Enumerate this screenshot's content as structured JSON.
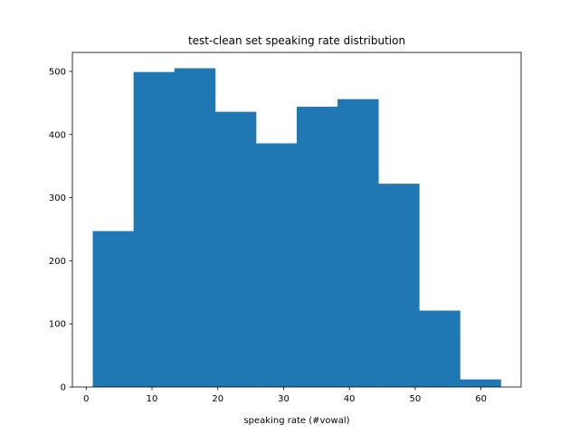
{
  "chart_data": {
    "type": "bar",
    "title": "test-clean set speaking rate distribution",
    "xlabel": "speaking rate (#vowal)",
    "ylabel": "",
    "bar_color": "#1f77b4",
    "bins": [
      {
        "x0": 1.0,
        "x1": 7.2,
        "value": 247
      },
      {
        "x0": 7.2,
        "x1": 13.4,
        "value": 499
      },
      {
        "x0": 13.4,
        "x1": 19.6,
        "value": 505
      },
      {
        "x0": 19.6,
        "x1": 25.8,
        "value": 436
      },
      {
        "x0": 25.8,
        "x1": 32.0,
        "value": 386
      },
      {
        "x0": 32.0,
        "x1": 38.2,
        "value": 444
      },
      {
        "x0": 38.2,
        "x1": 44.4,
        "value": 456
      },
      {
        "x0": 44.4,
        "x1": 50.6,
        "value": 322
      },
      {
        "x0": 50.6,
        "x1": 56.8,
        "value": 121
      },
      {
        "x0": 56.8,
        "x1": 63.0,
        "value": 12
      }
    ],
    "xlim": [
      -2.1,
      66.1
    ],
    "ylim": [
      0,
      530
    ],
    "xticks": [
      0,
      10,
      20,
      30,
      40,
      50,
      60
    ],
    "yticks": [
      0,
      100,
      200,
      300,
      400,
      500
    ],
    "grid": false
  }
}
